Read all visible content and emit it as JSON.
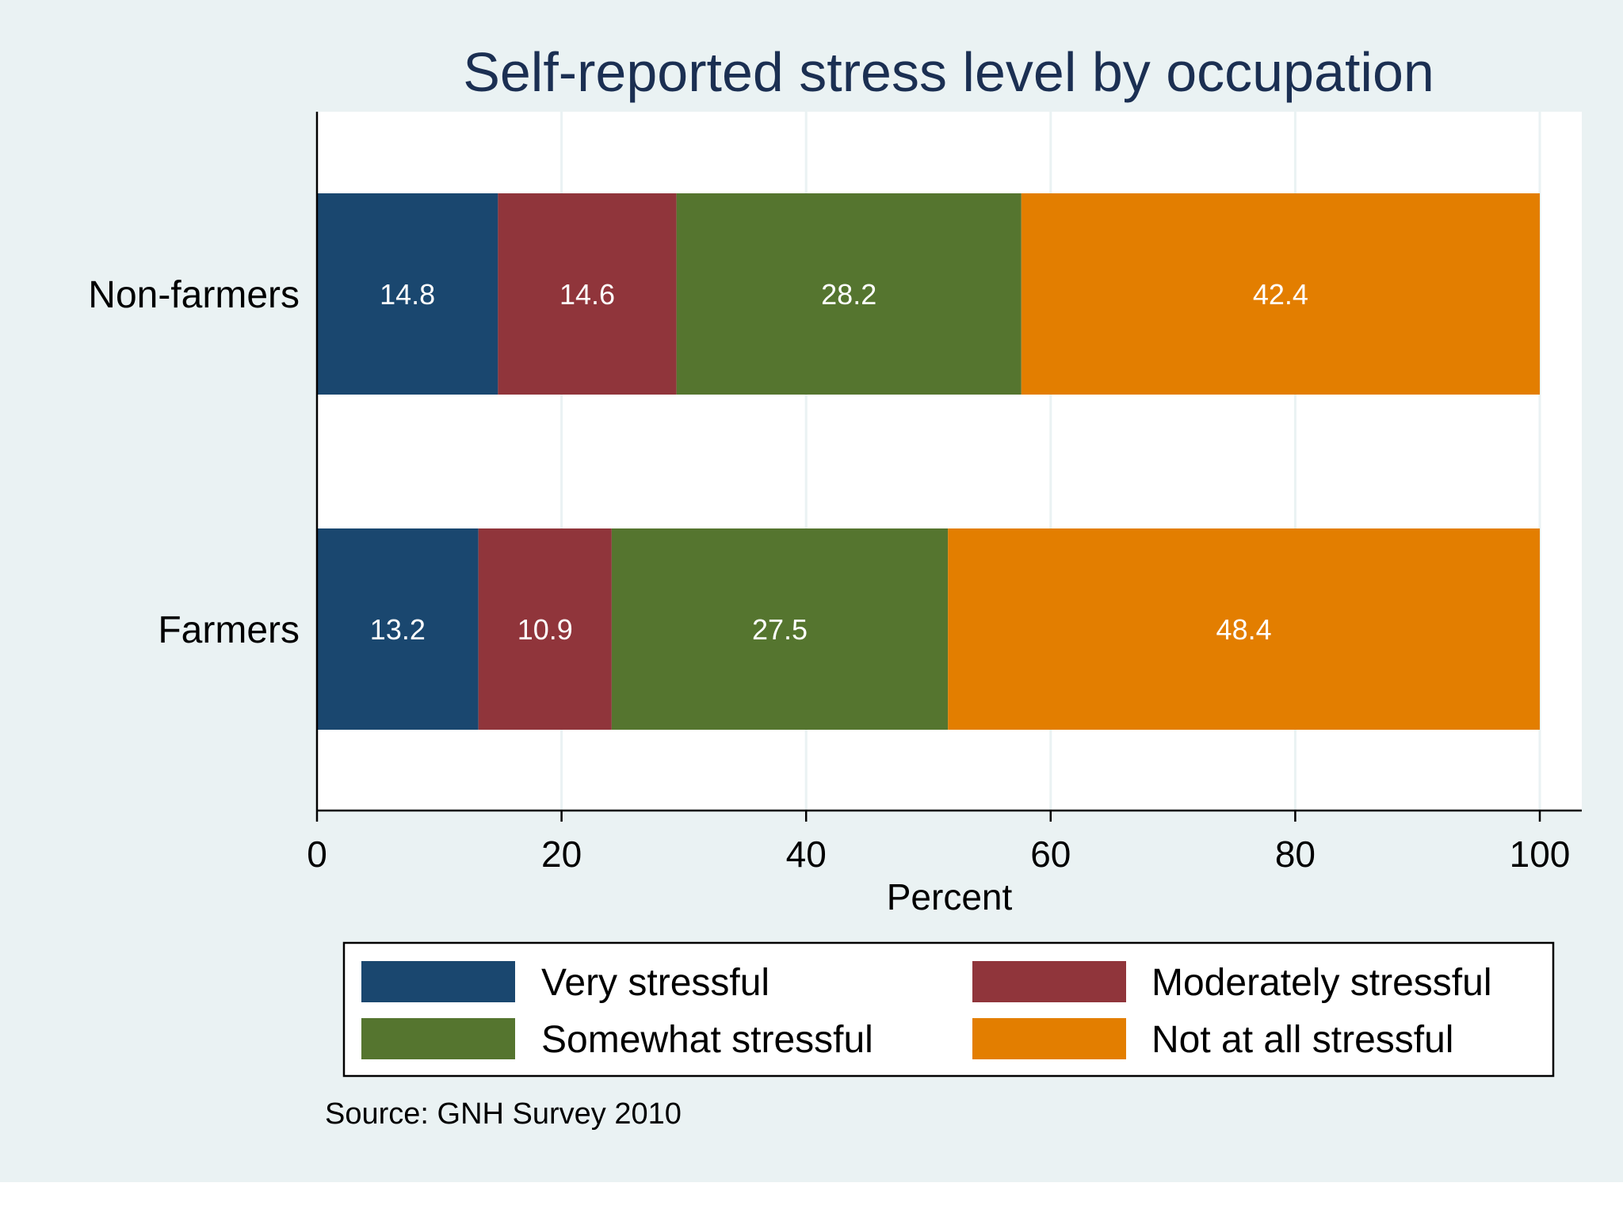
{
  "chart_data": {
    "type": "bar",
    "orientation": "horizontal",
    "stacked": true,
    "title": "Self-reported stress level by occupation",
    "xlabel": "Percent",
    "ylabel": "",
    "xlim": [
      0,
      100
    ],
    "xticks": [
      0,
      20,
      40,
      60,
      80,
      100
    ],
    "grid": true,
    "categories": [
      "Non-farmers",
      "Farmers"
    ],
    "series": [
      {
        "name": "Very stressful",
        "color": "#1a476f",
        "values": [
          14.8,
          13.2
        ]
      },
      {
        "name": "Moderately stressful",
        "color": "#90353b",
        "values": [
          14.6,
          10.9
        ]
      },
      {
        "name": "Somewhat stressful",
        "color": "#55752f",
        "values": [
          28.2,
          27.5
        ]
      },
      {
        "name": "Not at all stressful",
        "color": "#e37e00",
        "values": [
          42.4,
          48.4
        ]
      }
    ],
    "legend_position": "bottom",
    "note": "Source: GNH Survey 2010",
    "colors": {
      "background": "#eaf2f3",
      "plot": "#ffffff",
      "grid": "#eaf2f3",
      "title": "#1b2f52"
    }
  }
}
